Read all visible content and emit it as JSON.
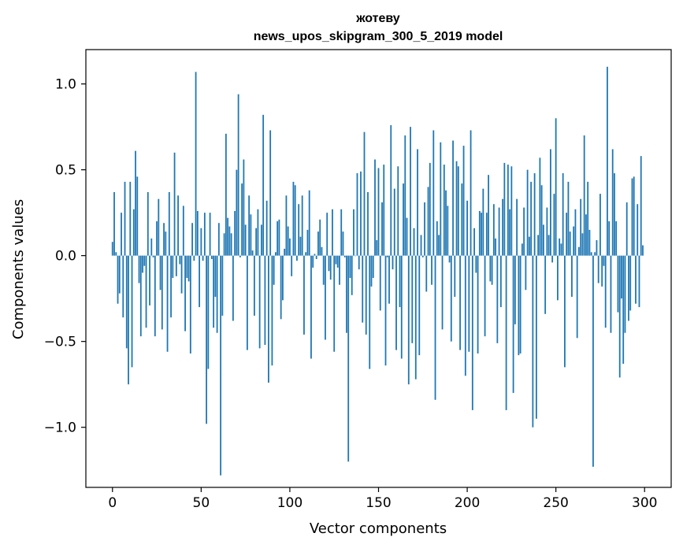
{
  "chart_data": {
    "type": "bar",
    "title": "жотеву",
    "subtitle": "news_upos_skipgram_300_5_2019 model",
    "xlabel": "Vector components",
    "ylabel": "Components values",
    "xlim": [
      -15,
      315
    ],
    "ylim": [
      -1.35,
      1.2
    ],
    "xticks": [
      0,
      50,
      100,
      150,
      200,
      250,
      300
    ],
    "yticks": [
      -1.0,
      -0.5,
      0.0,
      0.5,
      1.0
    ],
    "ytick_labels": [
      "−1.0",
      "−0.5",
      "0.0",
      "0.5",
      "1.0"
    ],
    "xtick_labels": [
      "0",
      "50",
      "100",
      "150",
      "200",
      "250",
      "300"
    ],
    "grid": false,
    "bar_color": "#1f77b4",
    "x": [
      0,
      1,
      2,
      3,
      4,
      5,
      6,
      7,
      8,
      9,
      10,
      11,
      12,
      13,
      14,
      15,
      16,
      17,
      18,
      19,
      20,
      21,
      22,
      23,
      24,
      25,
      26,
      27,
      28,
      29,
      30,
      31,
      32,
      33,
      34,
      35,
      36,
      37,
      38,
      39,
      40,
      41,
      42,
      43,
      44,
      45,
      46,
      47,
      48,
      49,
      50,
      51,
      52,
      53,
      54,
      55,
      56,
      57,
      58,
      59,
      60,
      61,
      62,
      63,
      64,
      65,
      66,
      67,
      68,
      69,
      70,
      71,
      72,
      73,
      74,
      75,
      76,
      77,
      78,
      79,
      80,
      81,
      82,
      83,
      84,
      85,
      86,
      87,
      88,
      89,
      90,
      91,
      92,
      93,
      94,
      95,
      96,
      97,
      98,
      99,
      100,
      101,
      102,
      103,
      104,
      105,
      106,
      107,
      108,
      109,
      110,
      111,
      112,
      113,
      114,
      115,
      116,
      117,
      118,
      119,
      120,
      121,
      122,
      123,
      124,
      125,
      126,
      127,
      128,
      129,
      130,
      131,
      132,
      133,
      134,
      135,
      136,
      137,
      138,
      139,
      140,
      141,
      142,
      143,
      144,
      145,
      146,
      147,
      148,
      149,
      150,
      151,
      152,
      153,
      154,
      155,
      156,
      157,
      158,
      159,
      160,
      161,
      162,
      163,
      164,
      165,
      166,
      167,
      168,
      169,
      170,
      171,
      172,
      173,
      174,
      175,
      176,
      177,
      178,
      179,
      180,
      181,
      182,
      183,
      184,
      185,
      186,
      187,
      188,
      189,
      190,
      191,
      192,
      193,
      194,
      195,
      196,
      197,
      198,
      199,
      200,
      201,
      202,
      203,
      204,
      205,
      206,
      207,
      208,
      209,
      210,
      211,
      212,
      213,
      214,
      215,
      216,
      217,
      218,
      219,
      220,
      221,
      222,
      223,
      224,
      225,
      226,
      227,
      228,
      229,
      230,
      231,
      232,
      233,
      234,
      235,
      236,
      237,
      238,
      239,
      240,
      241,
      242,
      243,
      244,
      245,
      246,
      247,
      248,
      249,
      250,
      251,
      252,
      253,
      254,
      255,
      256,
      257,
      258,
      259,
      260,
      261,
      262,
      263,
      264,
      265,
      266,
      267,
      268,
      269,
      270,
      271,
      272,
      273,
      274,
      275,
      276,
      277,
      278,
      279,
      280,
      281,
      282,
      283,
      284,
      285,
      286,
      287,
      288,
      289,
      290,
      291,
      292,
      293,
      294,
      295,
      296,
      297,
      298,
      299
    ],
    "values": [
      0.08,
      0.37,
      0.02,
      -0.28,
      -0.22,
      0.25,
      -0.36,
      0.43,
      -0.54,
      -0.75,
      0.43,
      -0.65,
      0.27,
      0.61,
      0.46,
      -0.16,
      -0.47,
      -0.1,
      -0.06,
      -0.42,
      0.37,
      -0.29,
      0.1,
      -0.01,
      -0.47,
      0.2,
      0.33,
      -0.2,
      -0.43,
      0.19,
      0.14,
      -0.56,
      0.37,
      -0.36,
      -0.13,
      0.6,
      -0.12,
      0.35,
      -0.05,
      -0.22,
      0.29,
      -0.44,
      -0.13,
      -0.15,
      -0.57,
      0.19,
      -0.03,
      1.07,
      0.26,
      -0.3,
      0.16,
      -0.03,
      0.25,
      -0.98,
      -0.66,
      0.25,
      -0.02,
      -0.42,
      -0.24,
      -0.45,
      0.19,
      -1.28,
      -0.35,
      0.13,
      0.71,
      0.22,
      0.17,
      0.13,
      -0.38,
      0.26,
      0.5,
      0.94,
      -0.01,
      0.42,
      0.56,
      0.18,
      -0.55,
      0.35,
      0.24,
      0.03,
      -0.35,
      0.16,
      0.27,
      -0.54,
      0.18,
      0.82,
      -0.52,
      0.32,
      -0.74,
      0.73,
      -0.64,
      -0.17,
      0.02,
      0.2,
      0.21,
      -0.37,
      -0.26,
      0.04,
      0.35,
      0.17,
      0.1,
      -0.12,
      0.43,
      0.41,
      -0.03,
      0.3,
      0.11,
      0.35,
      -0.46,
      0.02,
      0.15,
      0.38,
      -0.6,
      -0.07,
      0.01,
      -0.02,
      0.14,
      0.21,
      0.05,
      -0.17,
      -0.49,
      0.25,
      -0.09,
      -0.14,
      0.27,
      -0.56,
      -0.05,
      -0.07,
      -0.17,
      0.27,
      0.14,
      -0.01,
      -0.45,
      -1.2,
      -0.13,
      -0.23,
      0.27,
      0.0,
      0.48,
      -0.08,
      0.49,
      -0.39,
      0.72,
      -0.46,
      0.37,
      -0.66,
      -0.18,
      -0.13,
      0.56,
      0.09,
      0.51,
      -0.32,
      0.31,
      0.53,
      -0.64,
      -0.01,
      -0.28,
      0.76,
      -0.08,
      0.39,
      -0.55,
      0.52,
      -0.3,
      -0.6,
      0.42,
      0.7,
      0.22,
      -0.75,
      0.75,
      -0.51,
      0.16,
      -0.72,
      0.62,
      -0.58,
      0.12,
      -0.01,
      0.31,
      -0.21,
      0.4,
      0.54,
      -0.17,
      0.73,
      -0.84,
      0.2,
      0.12,
      0.66,
      -0.43,
      0.53,
      0.38,
      0.29,
      -0.04,
      -0.5,
      0.67,
      -0.24,
      0.55,
      0.52,
      -0.55,
      0.42,
      0.64,
      -0.7,
      0.32,
      -0.56,
      0.73,
      -0.9,
      0.16,
      -0.1,
      -0.57,
      0.26,
      0.25,
      0.39,
      -0.47,
      0.25,
      0.47,
      -0.15,
      -0.17,
      0.3,
      0.1,
      -0.51,
      0.28,
      -0.3,
      0.33,
      0.54,
      -0.9,
      0.53,
      0.27,
      0.52,
      -0.8,
      -0.4,
      0.33,
      -0.58,
      -0.57,
      0.07,
      0.28,
      -0.2,
      0.5,
      0.11,
      0.43,
      -1.0,
      0.48,
      -0.95,
      0.12,
      0.57,
      0.41,
      0.18,
      -0.34,
      0.28,
      0.12,
      0.62,
      -0.04,
      0.36,
      0.8,
      -0.26,
      0.1,
      0.07,
      0.48,
      -0.65,
      0.25,
      0.43,
      0.14,
      -0.24,
      0.17,
      0.27,
      -0.48,
      0.05,
      0.33,
      0.13,
      0.7,
      0.24,
      0.43,
      0.15,
      0.02,
      -1.23,
      0.02,
      0.09,
      -0.16,
      0.36,
      -0.18,
      -0.06,
      -0.42,
      1.1,
      0.2,
      -0.45,
      0.62,
      0.48,
      0.2,
      -0.33,
      -0.71,
      -0.25,
      -0.63,
      -0.45,
      0.31,
      -0.38,
      -0.32,
      0.45,
      0.46,
      -0.28,
      0.3,
      -0.3,
      0.58,
      0.06
    ]
  }
}
